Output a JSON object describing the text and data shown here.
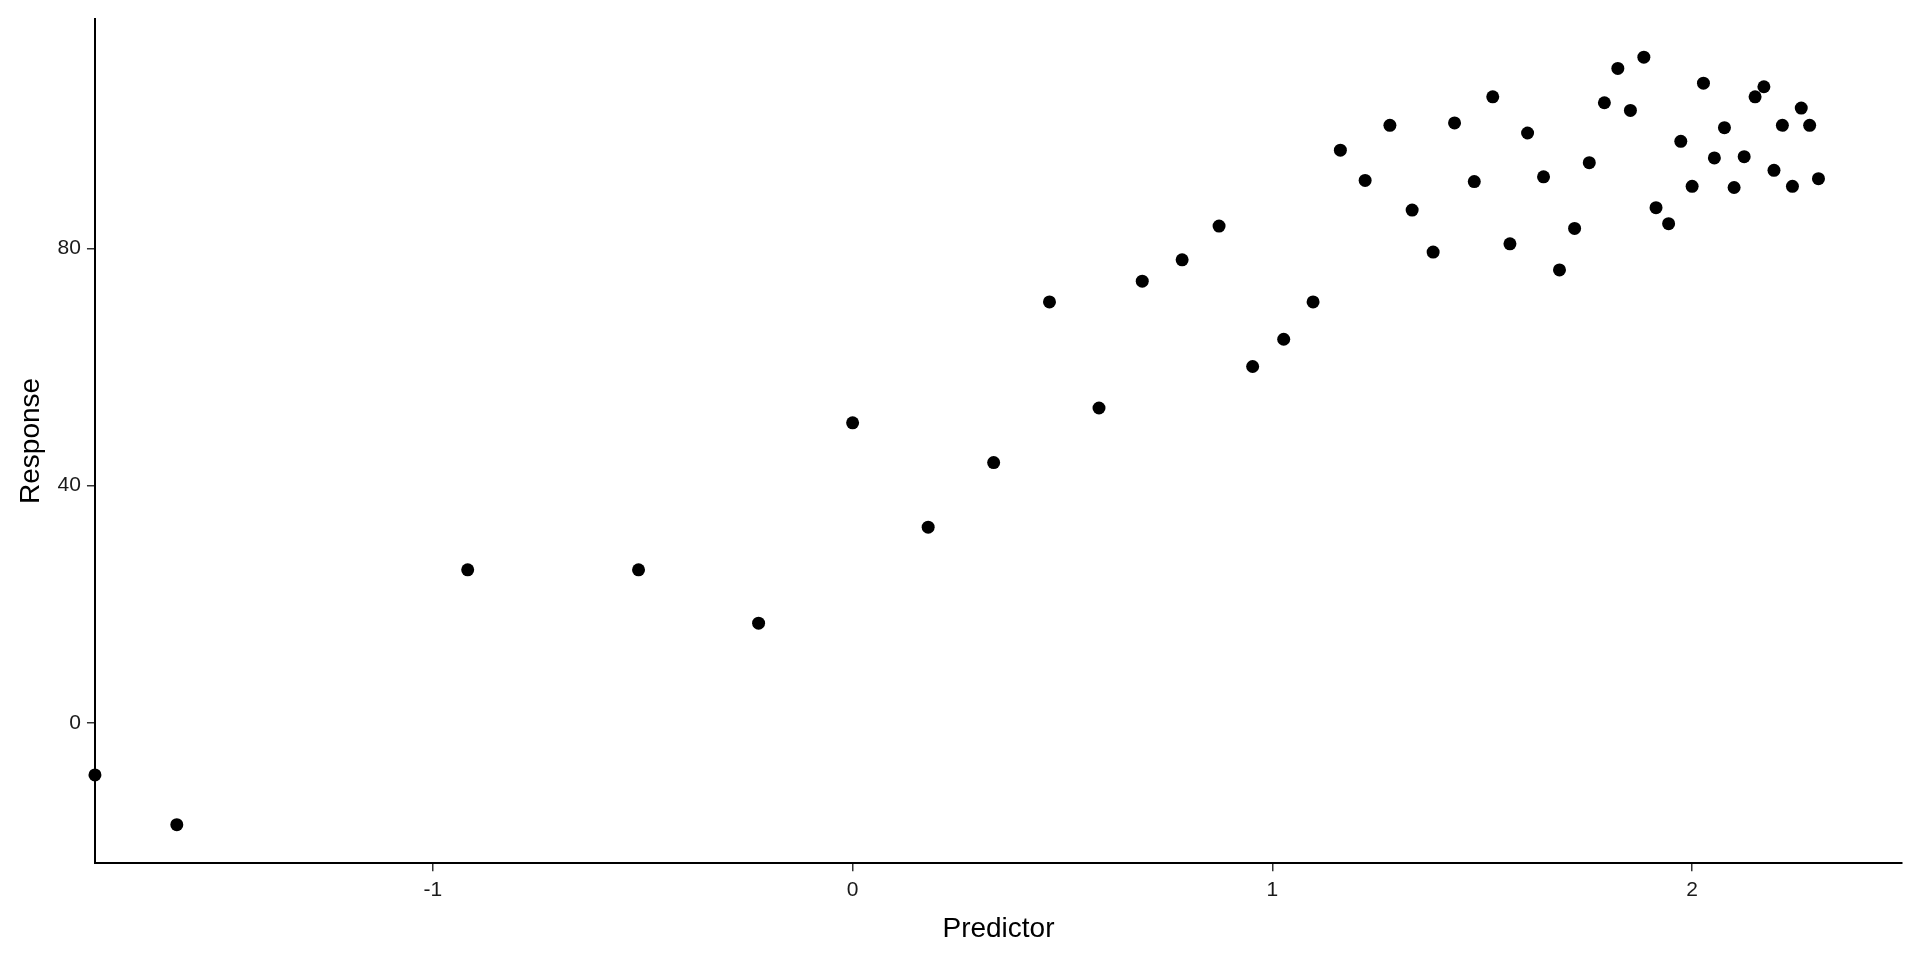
{
  "chart_data": {
    "type": "scatter",
    "xlabel": "Predictor",
    "ylabel": "Response",
    "xlim": [
      -1.805,
      2.5
    ],
    "ylim": [
      -23.7,
      118.8
    ],
    "xticks": [
      -1,
      0,
      1,
      2
    ],
    "yticks": [
      0,
      40,
      80
    ],
    "grid": false,
    "legend": false,
    "marker": "circle",
    "series": [
      {
        "color": "#000000",
        "x": [
          -1.805,
          -1.61,
          -0.917,
          -0.51,
          -0.224,
          0,
          0.18,
          0.336,
          0.469,
          0.587,
          0.69,
          0.785,
          0.873,
          0.953,
          1.027,
          1.097,
          1.162,
          1.221,
          1.28,
          1.333,
          1.383,
          1.434,
          1.481,
          1.525,
          1.566,
          1.608,
          1.646,
          1.684,
          1.72,
          1.755,
          1.791,
          1.823,
          1.853,
          1.885,
          1.914,
          1.944,
          1.973,
          2.0,
          2.027,
          2.053,
          2.077,
          2.1,
          2.124,
          2.15,
          2.171,
          2.195,
          2.215,
          2.239,
          2.26,
          2.28,
          2.301
        ],
        "values": [
          -8.8,
          -17.2,
          25.8,
          25.8,
          16.8,
          50.6,
          33.0,
          43.9,
          71.0,
          53.1,
          74.5,
          78.1,
          83.8,
          60.1,
          64.7,
          71.0,
          96.6,
          91.5,
          100.8,
          86.5,
          79.4,
          101.2,
          91.3,
          105.6,
          80.8,
          99.5,
          92.1,
          76.4,
          83.4,
          94.5,
          104.6,
          110.4,
          103.3,
          112.3,
          86.9,
          84.2,
          98.1,
          90.5,
          107.9,
          95.3,
          100.4,
          90.3,
          95.5,
          105.6,
          107.3,
          93.2,
          100.8,
          90.5,
          103.7,
          100.8,
          91.8
        ]
      }
    ]
  }
}
